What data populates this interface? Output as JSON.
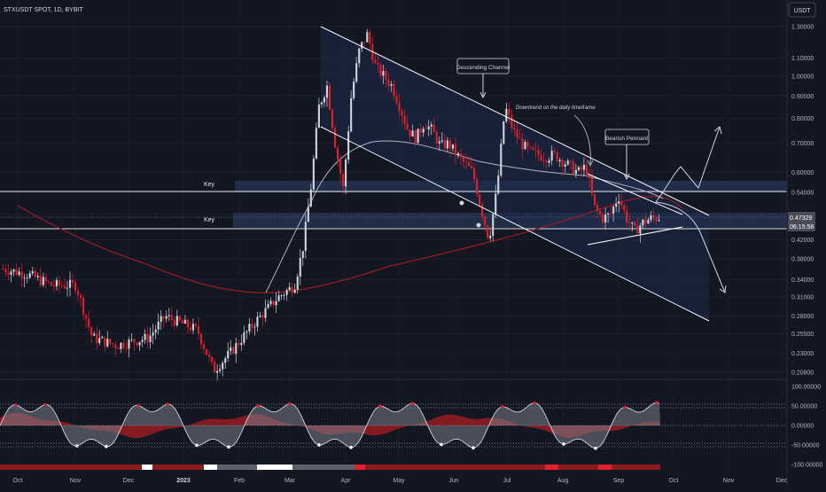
{
  "header": {
    "symbol": "STXUSDT SPOT, 1D, BYBIT",
    "currency": "USDT"
  },
  "colors": {
    "background": "#131722",
    "up": "#d1d4dc",
    "down": "#e0202a",
    "accent_price": "#9598a1",
    "channel": "#ffffff",
    "zone": "#2a3a5e"
  },
  "annotations": {
    "descending_channel": "Descending Channel",
    "downtrend": "Downtrend on the daily timeframe",
    "bearish_pennant": "Bearish Pennant",
    "key_upper": "Key",
    "key_lower": "Key"
  },
  "price_label": {
    "value": "0.47329",
    "countdown": "06:15:58"
  },
  "chart_data": [
    {
      "type": "candlestick",
      "title": "STXUSDT SPOT, 1D, BYBIT",
      "y_scale": "log",
      "ylim": [
        0.195,
        1.33
      ],
      "y_ticks": [
        1.3,
        1.1,
        1.0,
        0.9,
        0.8,
        0.7,
        0.6,
        0.54,
        0.48,
        0.42,
        0.38,
        0.34,
        0.31,
        0.28,
        0.255,
        0.23,
        0.208
      ],
      "y_tick_labels": [
        "1.30000",
        "1.10000",
        "1.00000",
        "0.90000",
        "0.80000",
        "0.70000",
        "0.60000",
        "0.54000",
        "0.48000",
        "0.42000",
        "0.38000",
        "0.34000",
        "0.31000",
        "0.28000",
        "0.25500",
        "0.23000",
        "0.20800"
      ],
      "x_ticks": [
        "Oct",
        "Nov",
        "Dec",
        "2023",
        "Feb",
        "Mar",
        "Apr",
        "May",
        "Jun",
        "Jul",
        "Aug",
        "Sep",
        "Oct",
        "Nov",
        "Dec"
      ],
      "key_levels": [
        0.525,
        0.452
      ],
      "last_price": 0.47329,
      "trend_path": [
        [
          0,
          0.36
        ],
        [
          3,
          0.35
        ],
        [
          6,
          0.33
        ],
        [
          9,
          0.33
        ],
        [
          11,
          0.25
        ],
        [
          14,
          0.24
        ],
        [
          18,
          0.25
        ],
        [
          20,
          0.28
        ],
        [
          24,
          0.26
        ],
        [
          26,
          0.21
        ],
        [
          28,
          0.23
        ],
        [
          31,
          0.27
        ],
        [
          34,
          0.31
        ],
        [
          36,
          0.33
        ],
        [
          37,
          0.4
        ],
        [
          38,
          0.55
        ],
        [
          39,
          0.85
        ],
        [
          40,
          0.95
        ],
        [
          41,
          0.7
        ],
        [
          42,
          0.55
        ],
        [
          43,
          0.9
        ],
        [
          44,
          1.15
        ],
        [
          45,
          1.25
        ],
        [
          46,
          1.05
        ],
        [
          47,
          1.0
        ],
        [
          48,
          0.95
        ],
        [
          49,
          0.85
        ],
        [
          50,
          0.75
        ],
        [
          51,
          0.72
        ],
        [
          52,
          0.78
        ],
        [
          53,
          0.75
        ],
        [
          54,
          0.69
        ],
        [
          55,
          0.7
        ],
        [
          56,
          0.66
        ],
        [
          57,
          0.63
        ],
        [
          58,
          0.6
        ],
        [
          59,
          0.5
        ],
        [
          60,
          0.42
        ],
        [
          61,
          0.55
        ],
        [
          62,
          0.85
        ],
        [
          63,
          0.75
        ],
        [
          64,
          0.7
        ],
        [
          65,
          0.67
        ],
        [
          66,
          0.66
        ],
        [
          67,
          0.65
        ],
        [
          68,
          0.66
        ],
        [
          69,
          0.64
        ],
        [
          70,
          0.62
        ],
        [
          71,
          0.6
        ],
        [
          72,
          0.62
        ],
        [
          73,
          0.5
        ],
        [
          74,
          0.47
        ],
        [
          75,
          0.48
        ],
        [
          76,
          0.53
        ],
        [
          77,
          0.47
        ],
        [
          78,
          0.44
        ],
        [
          79,
          0.46
        ],
        [
          80,
          0.47
        ],
        [
          81,
          0.473
        ]
      ]
    },
    {
      "type": "area",
      "title": "",
      "ylim": [
        -100,
        100
      ],
      "y_ticks": [
        100,
        50,
        0,
        -50,
        -100
      ],
      "y_tick_labels": [
        "100.00000",
        "50.00000",
        "0.00000",
        "-50.00000",
        "-100.00000"
      ]
    }
  ]
}
